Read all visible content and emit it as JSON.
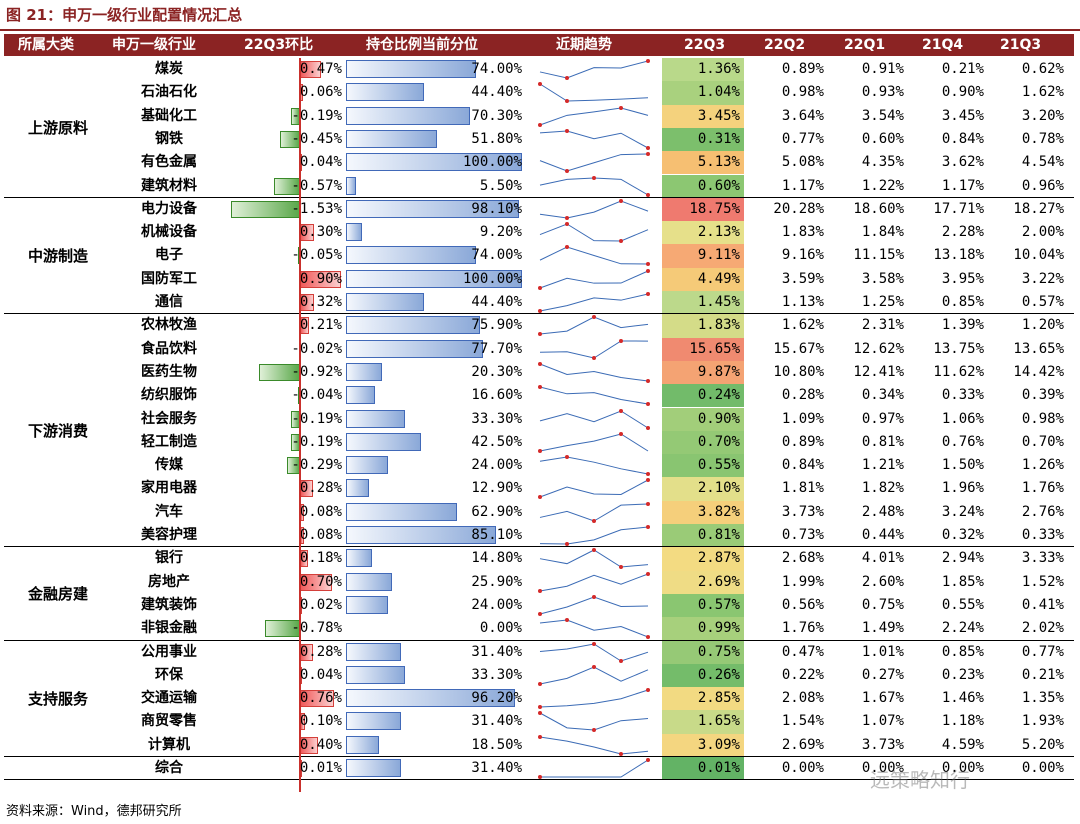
{
  "title": "图 21：申万一级行业配置情况汇总",
  "headers": [
    "所属大类",
    "申万一级行业",
    "22Q3环比",
    "持仓比例当前分位",
    "近期趋势",
    "22Q3",
    "22Q2",
    "22Q1",
    "21Q4",
    "21Q3"
  ],
  "footer": "资料来源：Wind，德邦研究所",
  "watermark": "远策略知行",
  "categories": [
    {
      "name": "上游原料",
      "rows": [
        {
          "industry": "煤炭",
          "chg": "0.47%",
          "chg_value": 0.47,
          "pct": "74.00%",
          "pct_value": 74.0,
          "q": [
            "1.36%",
            "0.89%",
            "0.91%",
            "0.21%",
            "0.62%"
          ],
          "qv": [
            1.36,
            0.89,
            0.91,
            0.21,
            0.62
          ],
          "heat": "#b9d98a"
        },
        {
          "industry": "石油石化",
          "chg": "0.06%",
          "chg_value": 0.06,
          "pct": "44.40%",
          "pct_value": 44.4,
          "q": [
            "1.04%",
            "0.98%",
            "0.93%",
            "0.90%",
            "1.62%"
          ],
          "qv": [
            1.04,
            0.98,
            0.93,
            0.9,
            1.62
          ],
          "heat": "#a9d17e"
        },
        {
          "industry": "基础化工",
          "chg": "-0.19%",
          "chg_value": -0.19,
          "pct": "70.30%",
          "pct_value": 70.3,
          "q": [
            "3.45%",
            "3.64%",
            "3.54%",
            "3.45%",
            "3.20%"
          ],
          "qv": [
            3.45,
            3.64,
            3.54,
            3.45,
            3.2
          ],
          "heat": "#f4d27d"
        },
        {
          "industry": "钢铁",
          "chg": "-0.45%",
          "chg_value": -0.45,
          "pct": "51.80%",
          "pct_value": 51.8,
          "q": [
            "0.31%",
            "0.77%",
            "0.60%",
            "0.84%",
            "0.78%"
          ],
          "qv": [
            0.31,
            0.77,
            0.6,
            0.84,
            0.78
          ],
          "heat": "#7cbf6c"
        },
        {
          "industry": "有色金属",
          "chg": "0.04%",
          "chg_value": 0.04,
          "pct": "100.00%",
          "pct_value": 100.0,
          "q": [
            "5.13%",
            "5.08%",
            "4.35%",
            "3.62%",
            "4.54%"
          ],
          "qv": [
            5.13,
            5.08,
            4.35,
            3.62,
            4.54
          ],
          "heat": "#f6bf72"
        },
        {
          "industry": "建筑材料",
          "chg": "-0.57%",
          "chg_value": -0.57,
          "pct": "5.50%",
          "pct_value": 5.5,
          "q": [
            "0.60%",
            "1.17%",
            "1.22%",
            "1.17%",
            "0.96%"
          ],
          "qv": [
            0.6,
            1.17,
            1.22,
            1.17,
            0.96
          ],
          "heat": "#8cc772"
        }
      ]
    },
    {
      "name": "中游制造",
      "rows": [
        {
          "industry": "电力设备",
          "chg": "-1.53%",
          "chg_value": -1.53,
          "pct": "98.10%",
          "pct_value": 98.1,
          "q": [
            "18.75%",
            "20.28%",
            "18.60%",
            "17.71%",
            "18.27%"
          ],
          "qv": [
            18.75,
            20.28,
            18.6,
            17.71,
            18.27
          ],
          "heat": "#ef7a6f"
        },
        {
          "industry": "机械设备",
          "chg": "0.30%",
          "chg_value": 0.3,
          "pct": "9.20%",
          "pct_value": 9.2,
          "q": [
            "2.13%",
            "1.83%",
            "1.84%",
            "2.28%",
            "2.00%"
          ],
          "qv": [
            2.13,
            1.83,
            1.84,
            2.28,
            2.0
          ],
          "heat": "#e6e08a"
        },
        {
          "industry": "电子",
          "chg": "-0.05%",
          "chg_value": -0.05,
          "pct": "74.00%",
          "pct_value": 74.0,
          "q": [
            "9.11%",
            "9.16%",
            "11.15%",
            "13.18%",
            "10.04%"
          ],
          "qv": [
            9.11,
            9.16,
            11.15,
            13.18,
            10.04
          ],
          "heat": "#f6a974"
        },
        {
          "industry": "国防军工",
          "chg": "0.90%",
          "chg_value": 0.9,
          "pct": "100.00%",
          "pct_value": 100.0,
          "q": [
            "4.49%",
            "3.59%",
            "3.58%",
            "3.95%",
            "3.22%"
          ],
          "qv": [
            4.49,
            3.59,
            3.58,
            3.95,
            3.22
          ],
          "heat": "#f5ca78"
        },
        {
          "industry": "通信",
          "chg": "0.32%",
          "chg_value": 0.32,
          "pct": "44.40%",
          "pct_value": 44.4,
          "q": [
            "1.45%",
            "1.13%",
            "1.25%",
            "0.85%",
            "0.57%"
          ],
          "qv": [
            1.45,
            1.13,
            1.25,
            0.85,
            0.57
          ],
          "heat": "#bcd98b"
        }
      ]
    },
    {
      "name": "下游消费",
      "rows": [
        {
          "industry": "农林牧渔",
          "chg": "0.21%",
          "chg_value": 0.21,
          "pct": "75.90%",
          "pct_value": 75.9,
          "q": [
            "1.83%",
            "1.62%",
            "2.31%",
            "1.39%",
            "1.20%"
          ],
          "qv": [
            1.83,
            1.62,
            2.31,
            1.39,
            1.2
          ],
          "heat": "#d4dc88"
        },
        {
          "industry": "食品饮料",
          "chg": "-0.02%",
          "chg_value": -0.02,
          "pct": "77.70%",
          "pct_value": 77.7,
          "q": [
            "15.65%",
            "15.67%",
            "12.62%",
            "13.75%",
            "13.65%"
          ],
          "qv": [
            15.65,
            15.67,
            12.62,
            13.75,
            13.65
          ],
          "heat": "#f08a70"
        },
        {
          "industry": "医药生物",
          "chg": "-0.92%",
          "chg_value": -0.92,
          "pct": "20.30%",
          "pct_value": 20.3,
          "q": [
            "9.87%",
            "10.80%",
            "12.41%",
            "11.62%",
            "14.42%"
          ],
          "qv": [
            9.87,
            10.8,
            12.41,
            11.62,
            14.42
          ],
          "heat": "#f4a373"
        },
        {
          "industry": "纺织服饰",
          "chg": "-0.04%",
          "chg_value": -0.04,
          "pct": "16.60%",
          "pct_value": 16.6,
          "q": [
            "0.24%",
            "0.28%",
            "0.34%",
            "0.33%",
            "0.39%"
          ],
          "qv": [
            0.24,
            0.28,
            0.34,
            0.33,
            0.39
          ],
          "heat": "#72bb6a"
        },
        {
          "industry": "社会服务",
          "chg": "-0.19%",
          "chg_value": -0.19,
          "pct": "33.30%",
          "pct_value": 33.3,
          "q": [
            "0.90%",
            "1.09%",
            "0.97%",
            "1.06%",
            "0.98%"
          ],
          "qv": [
            0.9,
            1.09,
            0.97,
            1.06,
            0.98
          ],
          "heat": "#a2ce7a"
        },
        {
          "industry": "轻工制造",
          "chg": "-0.19%",
          "chg_value": -0.19,
          "pct": "42.50%",
          "pct_value": 42.5,
          "q": [
            "0.70%",
            "0.89%",
            "0.81%",
            "0.76%",
            "0.70%"
          ],
          "qv": [
            0.7,
            0.89,
            0.81,
            0.76,
            0.7
          ],
          "heat": "#94c975"
        },
        {
          "industry": "传媒",
          "chg": "-0.29%",
          "chg_value": -0.29,
          "pct": "24.00%",
          "pct_value": 24.0,
          "q": [
            "0.55%",
            "0.84%",
            "1.21%",
            "1.50%",
            "1.26%"
          ],
          "qv": [
            0.55,
            0.84,
            1.21,
            1.5,
            1.26
          ],
          "heat": "#89c571"
        },
        {
          "industry": "家用电器",
          "chg": "0.28%",
          "chg_value": 0.28,
          "pct": "12.90%",
          "pct_value": 12.9,
          "q": [
            "2.10%",
            "1.81%",
            "1.82%",
            "1.96%",
            "1.76%"
          ],
          "qv": [
            2.1,
            1.81,
            1.82,
            1.96,
            1.76
          ],
          "heat": "#e3df8a"
        },
        {
          "industry": "汽车",
          "chg": "0.08%",
          "chg_value": 0.08,
          "pct": "62.90%",
          "pct_value": 62.9,
          "q": [
            "3.82%",
            "3.73%",
            "2.48%",
            "3.24%",
            "2.76%"
          ],
          "qv": [
            3.82,
            3.73,
            2.48,
            3.24,
            2.76
          ],
          "heat": "#f5cf7b"
        },
        {
          "industry": "美容护理",
          "chg": "0.08%",
          "chg_value": 0.08,
          "pct": "85.10%",
          "pct_value": 85.1,
          "q": [
            "0.81%",
            "0.73%",
            "0.44%",
            "0.32%",
            "0.33%"
          ],
          "qv": [
            0.81,
            0.73,
            0.44,
            0.32,
            0.33
          ],
          "heat": "#9acb77"
        }
      ]
    },
    {
      "name": "金融房建",
      "rows": [
        {
          "industry": "银行",
          "chg": "0.18%",
          "chg_value": 0.18,
          "pct": "14.80%",
          "pct_value": 14.8,
          "q": [
            "2.87%",
            "2.68%",
            "4.01%",
            "2.94%",
            "3.33%"
          ],
          "qv": [
            2.87,
            2.68,
            4.01,
            2.94,
            3.33
          ],
          "heat": "#f3db82"
        },
        {
          "industry": "房地产",
          "chg": "0.70%",
          "chg_value": 0.7,
          "pct": "25.90%",
          "pct_value": 25.9,
          "q": [
            "2.69%",
            "1.99%",
            "2.60%",
            "1.85%",
            "1.52%"
          ],
          "qv": [
            2.69,
            1.99,
            2.6,
            1.85,
            1.52
          ],
          "heat": "#efdc85"
        },
        {
          "industry": "建筑装饰",
          "chg": "0.02%",
          "chg_value": 0.02,
          "pct": "24.00%",
          "pct_value": 24.0,
          "q": [
            "0.57%",
            "0.56%",
            "0.75%",
            "0.55%",
            "0.41%"
          ],
          "qv": [
            0.57,
            0.56,
            0.75,
            0.55,
            0.41
          ],
          "heat": "#8ac671"
        },
        {
          "industry": "非银金融",
          "chg": "-0.78%",
          "chg_value": -0.78,
          "pct": "0.00%",
          "pct_value": 0.0,
          "q": [
            "0.99%",
            "1.76%",
            "1.49%",
            "2.24%",
            "2.02%"
          ],
          "qv": [
            0.99,
            1.76,
            1.49,
            2.24,
            2.02
          ],
          "heat": "#a7d07c"
        }
      ]
    },
    {
      "name": "支持服务",
      "rows": [
        {
          "industry": "公用事业",
          "chg": "0.28%",
          "chg_value": 0.28,
          "pct": "31.40%",
          "pct_value": 31.4,
          "q": [
            "0.75%",
            "0.47%",
            "1.01%",
            "0.85%",
            "0.77%"
          ],
          "qv": [
            0.75,
            0.47,
            1.01,
            0.85,
            0.77
          ],
          "heat": "#96c976"
        },
        {
          "industry": "环保",
          "chg": "0.04%",
          "chg_value": 0.04,
          "pct": "33.30%",
          "pct_value": 33.3,
          "q": [
            "0.26%",
            "0.22%",
            "0.27%",
            "0.23%",
            "0.21%"
          ],
          "qv": [
            0.26,
            0.22,
            0.27,
            0.23,
            0.21
          ],
          "heat": "#74bc6a"
        },
        {
          "industry": "交通运输",
          "chg": "0.76%",
          "chg_value": 0.76,
          "pct": "96.20%",
          "pct_value": 96.2,
          "q": [
            "2.85%",
            "2.08%",
            "1.67%",
            "1.46%",
            "1.35%"
          ],
          "qv": [
            2.85,
            2.08,
            1.67,
            1.46,
            1.35
          ],
          "heat": "#f2da82"
        },
        {
          "industry": "商贸零售",
          "chg": "0.10%",
          "chg_value": 0.1,
          "pct": "31.40%",
          "pct_value": 31.4,
          "q": [
            "1.65%",
            "1.54%",
            "1.07%",
            "1.18%",
            "1.93%"
          ],
          "qv": [
            1.65,
            1.54,
            1.07,
            1.18,
            1.93
          ],
          "heat": "#c8da89"
        },
        {
          "industry": "计算机",
          "chg": "0.40%",
          "chg_value": 0.4,
          "pct": "18.50%",
          "pct_value": 18.5,
          "q": [
            "3.09%",
            "2.69%",
            "3.73%",
            "4.59%",
            "5.20%"
          ],
          "qv": [
            3.09,
            2.69,
            3.73,
            4.59,
            5.2
          ],
          "heat": "#f4d680"
        }
      ]
    },
    {
      "name": "",
      "rows": [
        {
          "industry": "综合",
          "chg": "0.01%",
          "chg_value": 0.01,
          "pct": "31.40%",
          "pct_value": 31.4,
          "q": [
            "0.01%",
            "0.00%",
            "0.00%",
            "0.00%",
            "0.00%"
          ],
          "qv": [
            0.01,
            0.0,
            0.0,
            0.0,
            0.0
          ],
          "heat": "#63b365"
        }
      ]
    }
  ]
}
